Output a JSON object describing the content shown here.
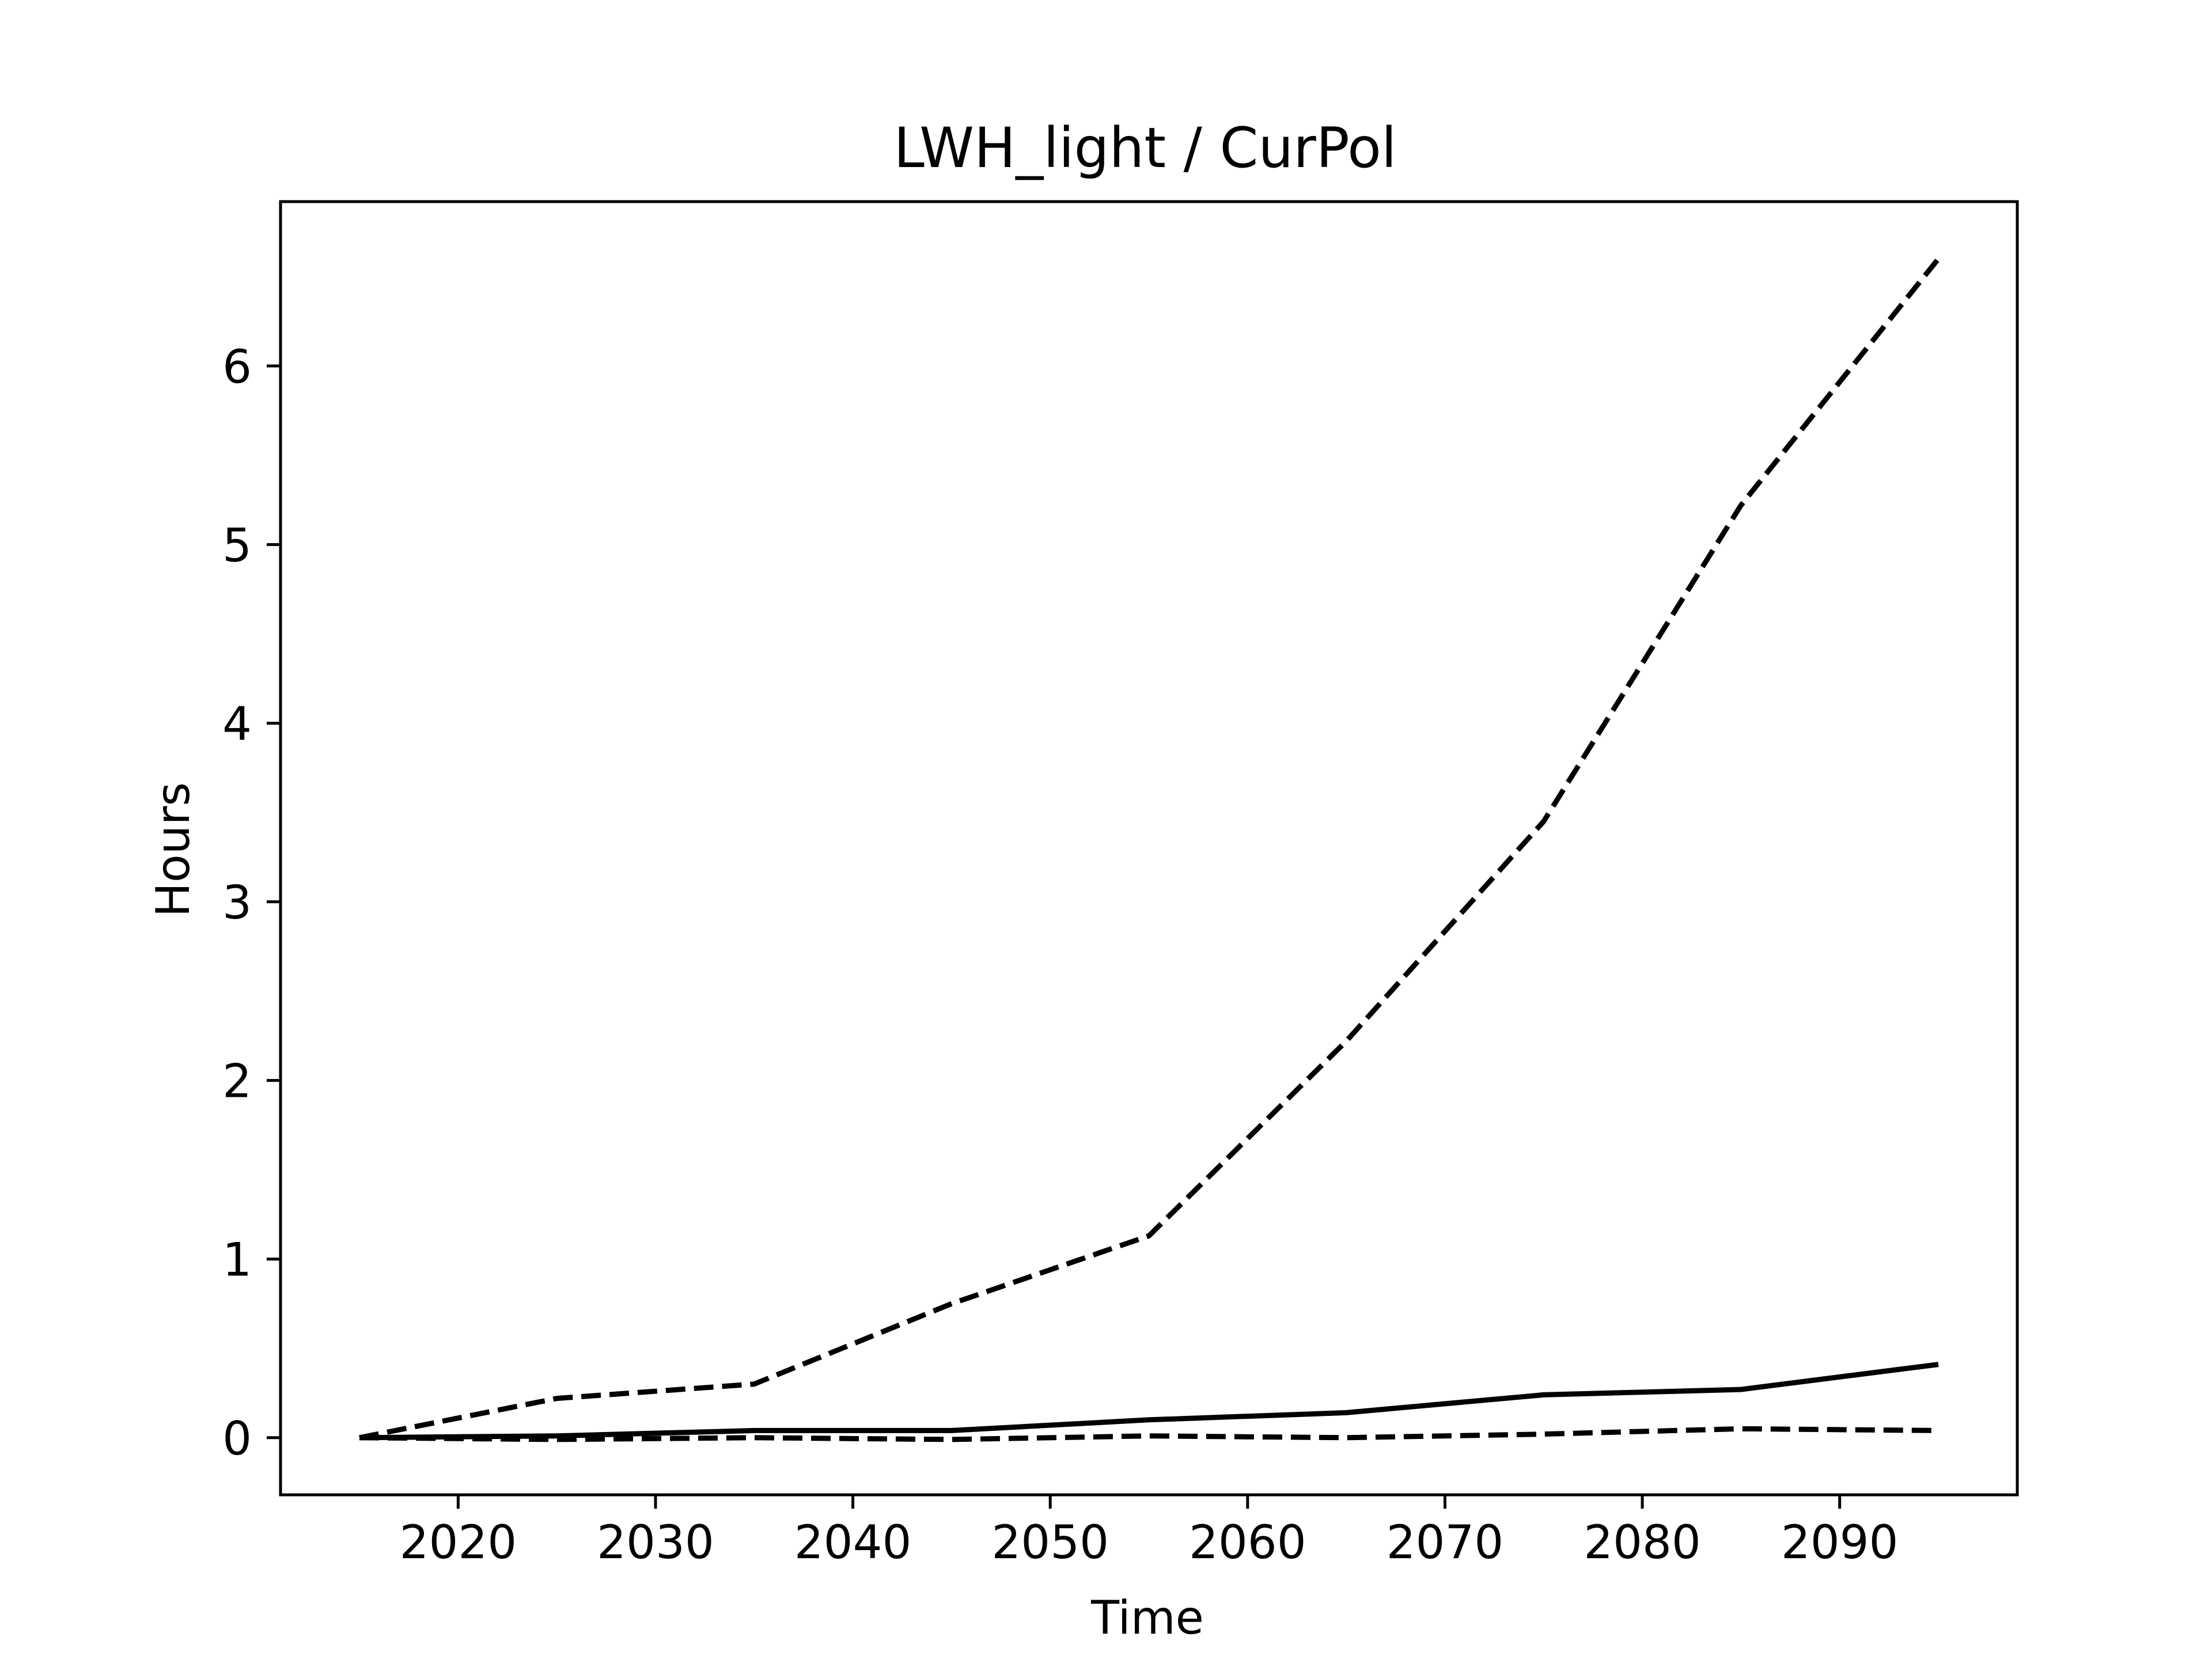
{
  "chart_data": {
    "type": "line",
    "title": "LWH_light / CurPol",
    "xlabel": "Time",
    "ylabel": "Hours",
    "xlim": [
      2011,
      2099
    ],
    "ylim": [
      -0.32,
      6.92
    ],
    "xticks": [
      2020,
      2030,
      2040,
      2050,
      2060,
      2070,
      2080,
      2090
    ],
    "yticks": [
      0,
      1,
      2,
      3,
      4,
      5,
      6
    ],
    "grid": false,
    "legend": "none",
    "x": [
      2015,
      2025,
      2035,
      2045,
      2055,
      2065,
      2075,
      2085,
      2095
    ],
    "series": [
      {
        "style": "dashed",
        "color": "#000000",
        "values": [
          0.0,
          0.22,
          0.3,
          0.75,
          1.13,
          2.22,
          3.45,
          5.22,
          6.6
        ]
      },
      {
        "style": "solid",
        "color": "#000000",
        "values": [
          0.0,
          0.01,
          0.04,
          0.04,
          0.1,
          0.14,
          0.24,
          0.27,
          0.41
        ]
      },
      {
        "style": "dashed",
        "color": "#000000",
        "values": [
          0.0,
          -0.01,
          0.0,
          -0.01,
          0.01,
          0.0,
          0.02,
          0.05,
          0.04
        ]
      }
    ]
  }
}
